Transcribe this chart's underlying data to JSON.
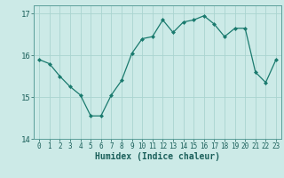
{
  "x": [
    0,
    1,
    2,
    3,
    4,
    5,
    6,
    7,
    8,
    9,
    10,
    11,
    12,
    13,
    14,
    15,
    16,
    17,
    18,
    19,
    20,
    21,
    22,
    23
  ],
  "y": [
    15.9,
    15.8,
    15.5,
    15.25,
    15.05,
    14.55,
    14.55,
    15.05,
    15.4,
    16.05,
    16.4,
    16.45,
    16.85,
    16.55,
    16.8,
    16.85,
    16.95,
    16.75,
    16.45,
    16.65,
    16.65,
    15.6,
    15.35,
    15.9
  ],
  "line_color": "#1a7a6e",
  "marker": "D",
  "markersize": 2.0,
  "linewidth": 0.9,
  "background_color": "#cceae7",
  "grid_color": "#aad4d0",
  "xlabel": "Humidex (Indice chaleur)",
  "xlabel_fontsize": 7,
  "xlabel_fontweight": "bold",
  "ylim": [
    14.0,
    17.2
  ],
  "xlim": [
    -0.5,
    23.5
  ],
  "yticks": [
    14,
    15,
    16,
    17
  ],
  "xtick_fontsize": 5.5,
  "ytick_fontsize": 6.5,
  "tick_color": "#1a5f5a",
  "spine_color": "#5a9e99",
  "grid_linewidth": 0.6
}
